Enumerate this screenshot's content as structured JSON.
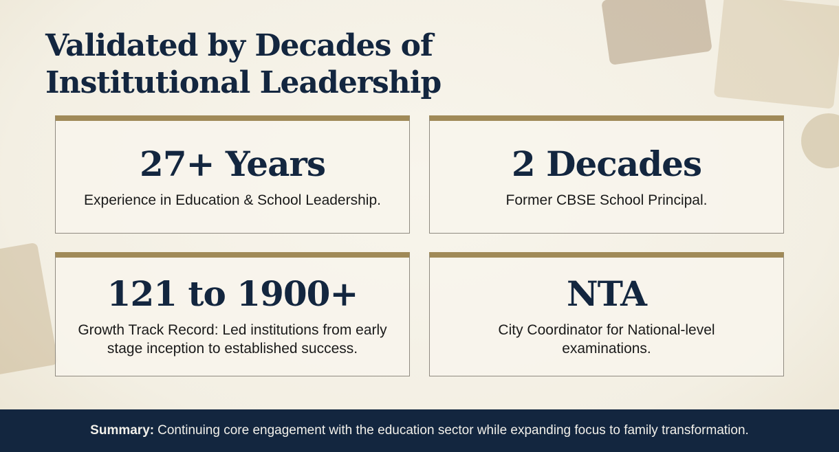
{
  "title_line1": "Validated by Decades of",
  "title_line2": "Institutional Leadership",
  "cards": [
    {
      "headline": "27+ Years",
      "text": "Experience in Education & School Leadership."
    },
    {
      "headline": "2 Decades",
      "text": "Former CBSE School Principal."
    },
    {
      "headline": "121 to 1900+",
      "text": "Growth Track Record: Led institutions from early stage inception to established success."
    },
    {
      "headline": "NTA",
      "text": "City Coordinator for National-level examinations."
    }
  ],
  "footer": {
    "label": "Summary:",
    "text": "Continuing core engagement with the education sector while expanding focus to family transformation."
  },
  "colors": {
    "navy": "#13263f",
    "gold": "#a08a58",
    "background": "#f5f1e6"
  }
}
